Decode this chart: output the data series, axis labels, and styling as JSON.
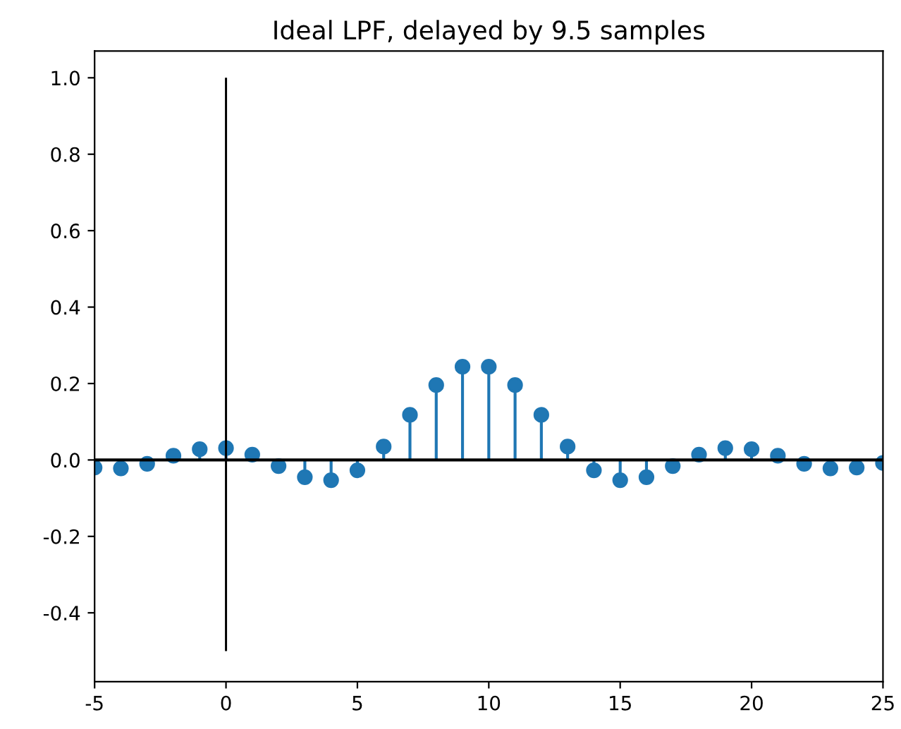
{
  "chart_data": {
    "type": "lollipop",
    "title": "Ideal LPF, delayed by 9.5 samples",
    "x": [
      -5,
      -4,
      -3,
      -2,
      -1,
      0,
      1,
      2,
      3,
      4,
      5,
      6,
      7,
      8,
      9,
      10,
      11,
      12,
      13,
      14,
      15,
      16,
      17,
      18,
      19,
      20,
      21,
      22,
      23,
      24,
      25
    ],
    "series": [
      {
        "color": "#1f77b4",
        "values": [
          -0.02,
          -0.022,
          -0.01,
          0.011,
          0.028,
          0.031,
          0.014,
          -0.016,
          -0.045,
          -0.053,
          -0.027,
          0.035,
          0.118,
          0.196,
          0.244,
          0.244,
          0.196,
          0.118,
          0.035,
          -0.027,
          -0.053,
          -0.045,
          -0.016,
          0.014,
          0.031,
          0.028,
          0.011,
          -0.01,
          -0.022,
          -0.02,
          -0.008
        ]
      },
      {
        "type": "bar",
        "color": "#000000",
        "x": [
          0
        ],
        "base": [
          -0.5
        ],
        "values": [
          1.5
        ]
      }
    ],
    "ref_lines": [
      {
        "axis": "y",
        "value": 0,
        "color": "#000000"
      }
    ],
    "xlim": [
      -5,
      25
    ],
    "xticks": [
      -5,
      0,
      5,
      10,
      15,
      20,
      25
    ],
    "ylim": [
      -0.58,
      1.07
    ],
    "yticks": [
      {
        "value": -0.4,
        "label": "-0.4"
      },
      {
        "value": -0.2,
        "label": "-0.2"
      },
      {
        "value": 0,
        "label": "0.0"
      },
      {
        "value": 0.2,
        "label": "0.2"
      },
      {
        "value": 0.4,
        "label": "0.4"
      },
      {
        "value": 0.6,
        "label": "0.6"
      },
      {
        "value": 0.8,
        "label": "0.8"
      },
      {
        "value": 1,
        "label": "1.0"
      }
    ],
    "marker": "circle",
    "grid": false,
    "legend": false
  }
}
